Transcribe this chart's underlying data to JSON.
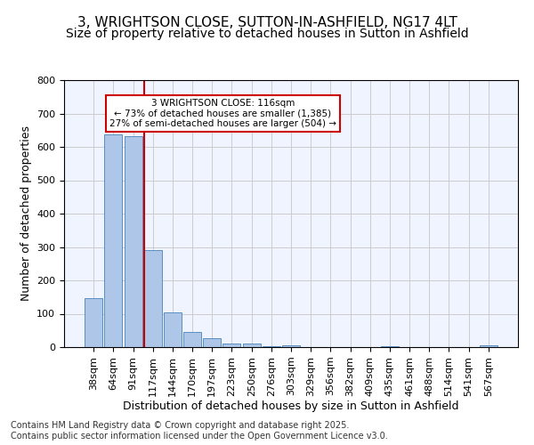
{
  "title": "3, WRIGHTSON CLOSE, SUTTON-IN-ASHFIELD, NG17 4LT",
  "subtitle": "Size of property relative to detached houses in Sutton in Ashfield",
  "xlabel": "Distribution of detached houses by size in Sutton in Ashfield",
  "ylabel": "Number of detached properties",
  "bar_labels": [
    "38sqm",
    "64sqm",
    "91sqm",
    "117sqm",
    "144sqm",
    "170sqm",
    "197sqm",
    "223sqm",
    "250sqm",
    "276sqm",
    "303sqm",
    "329sqm",
    "356sqm",
    "382sqm",
    "409sqm",
    "435sqm",
    "461sqm",
    "488sqm",
    "514sqm",
    "541sqm",
    "567sqm"
  ],
  "bar_values": [
    148,
    638,
    632,
    290,
    103,
    45,
    28,
    12,
    10,
    3,
    5,
    1,
    0,
    0,
    0,
    3,
    0,
    0,
    0,
    0,
    5
  ],
  "bar_color": "#aec6e8",
  "bar_edge_color": "#5a8fc2",
  "vline_x": 3,
  "vline_color": "#cc0000",
  "annotation_text": "3 WRIGHTSON CLOSE: 116sqm\n← 73% of detached houses are smaller (1,385)\n27% of semi-detached houses are larger (504) →",
  "annotation_box_color": "#ffffff",
  "annotation_box_edge": "#cc0000",
  "ylim": [
    0,
    800
  ],
  "yticks": [
    0,
    100,
    200,
    300,
    400,
    500,
    600,
    700,
    800
  ],
  "grid_color": "#cccccc",
  "bg_color": "#f0f4ff",
  "footer": "Contains HM Land Registry data © Crown copyright and database right 2025.\nContains public sector information licensed under the Open Government Licence v3.0.",
  "title_fontsize": 11,
  "subtitle_fontsize": 10,
  "axis_label_fontsize": 9,
  "tick_fontsize": 8,
  "footer_fontsize": 7
}
